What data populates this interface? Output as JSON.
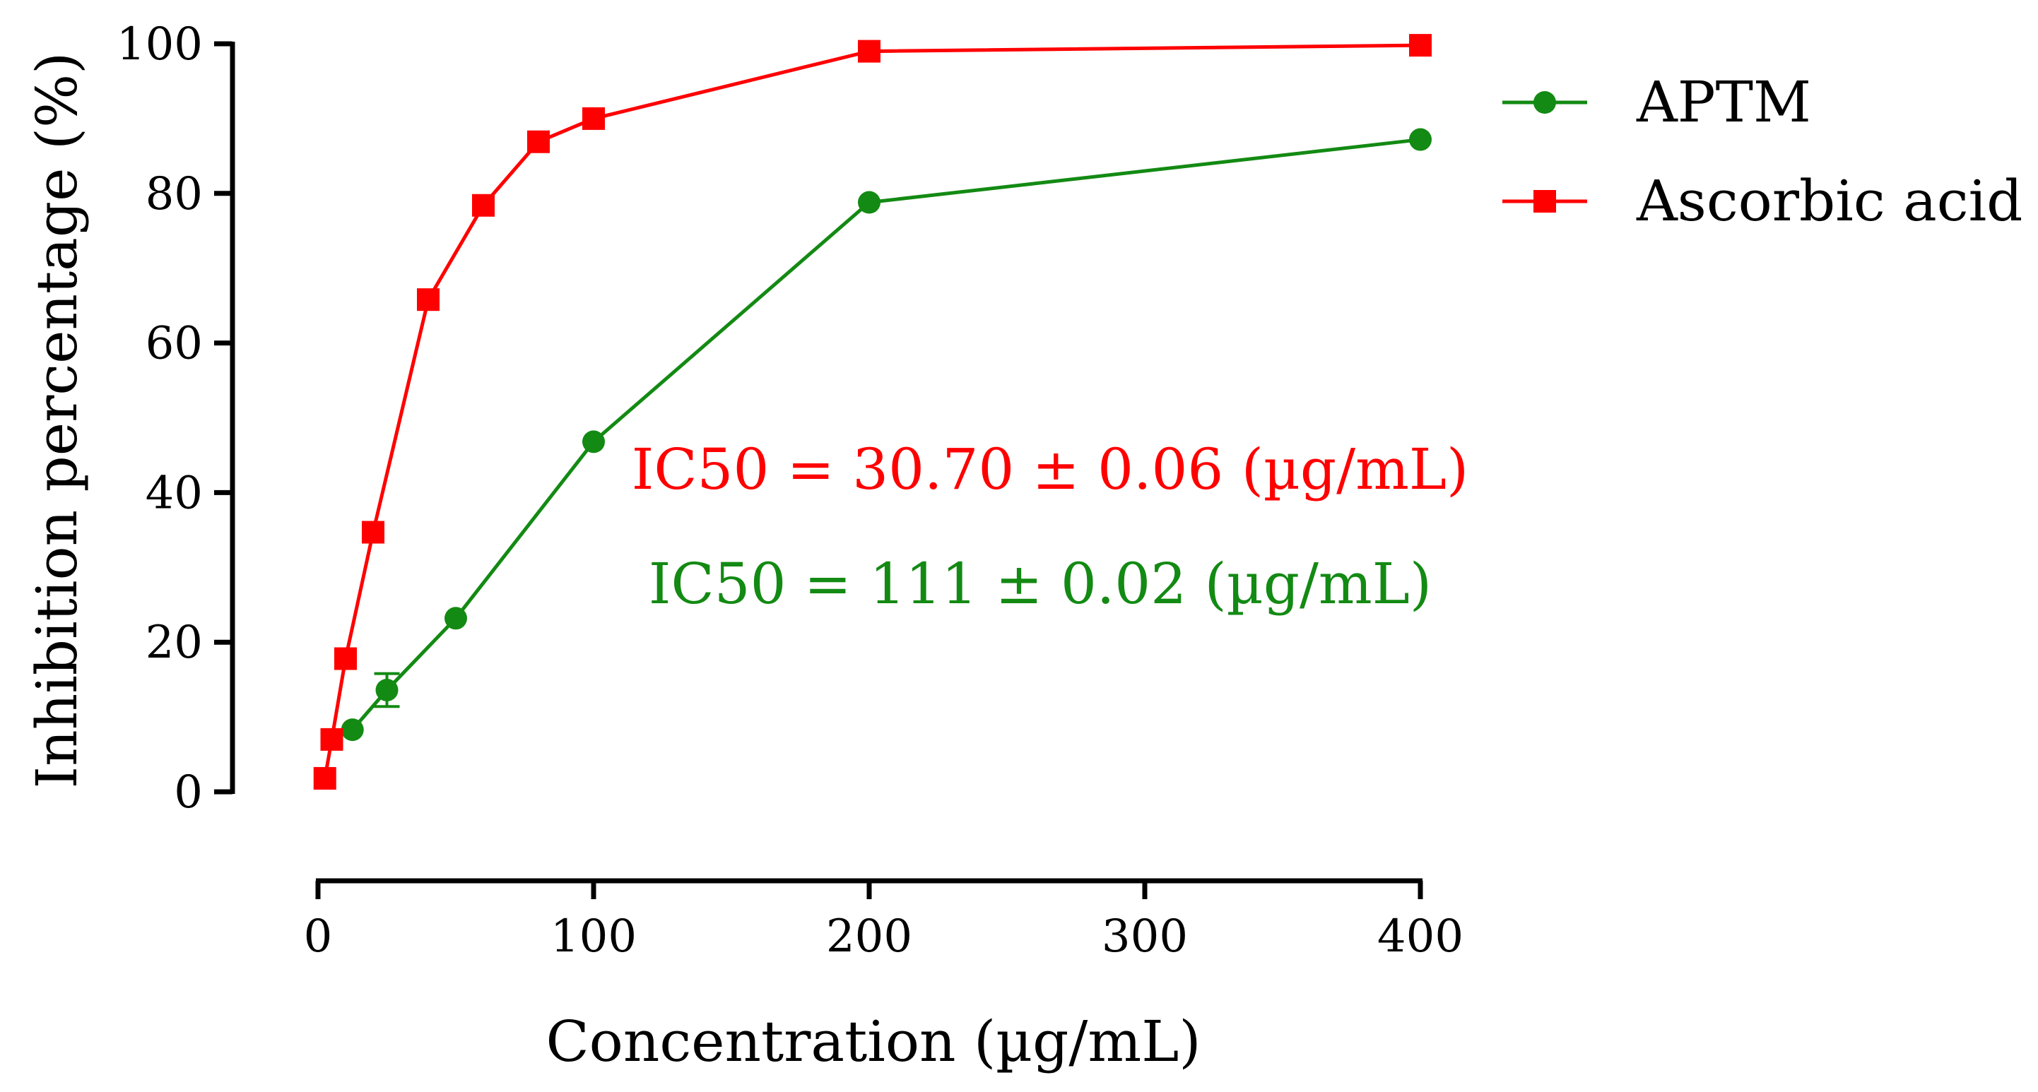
{
  "chart_data": {
    "type": "line",
    "title": "",
    "xlabel": "Concentration (µg/mL)",
    "ylabel": "Inhibition percentage (%)",
    "ylim": [
      0,
      100
    ],
    "y_ticks": [
      0,
      20,
      40,
      60,
      80,
      100
    ],
    "x_ticks": [
      {
        "value": 0,
        "label": "0"
      },
      {
        "value": 100,
        "label": "100"
      },
      {
        "value": 200,
        "label": "200"
      },
      {
        "value": 300,
        "label": "300"
      },
      {
        "value": 400,
        "label": "400"
      }
    ],
    "grid": false,
    "legend_position": "top-right",
    "series": [
      {
        "name": "APTM",
        "color": "#138a13",
        "marker": "circle",
        "x": [
          12.5,
          25,
          50,
          100,
          200,
          400
        ],
        "y": [
          8.3,
          13.6,
          23.2,
          46.8,
          78.8,
          87.2
        ],
        "error": [
          0.5,
          2.2,
          0.6,
          0.5,
          0.4,
          0.4
        ]
      },
      {
        "name": "Ascorbic acid",
        "color": "#ff0000",
        "marker": "square",
        "x": [
          2.5,
          5,
          10,
          20,
          40,
          60,
          80,
          100,
          200,
          400
        ],
        "y": [
          1.8,
          7.0,
          17.8,
          34.7,
          65.8,
          78.4,
          86.9,
          90.0,
          99.0,
          99.8
        ],
        "error": [
          0,
          0,
          0,
          0,
          0,
          0,
          0,
          0,
          0,
          0
        ]
      }
    ],
    "annotations": [
      {
        "text": "IC50 = 30.70 ± 0.06 (µg/mL)",
        "color": "#ff0000"
      },
      {
        "text": "IC50 = 111 ± 0.02 (µg/mL)",
        "color": "#138a13"
      }
    ]
  }
}
